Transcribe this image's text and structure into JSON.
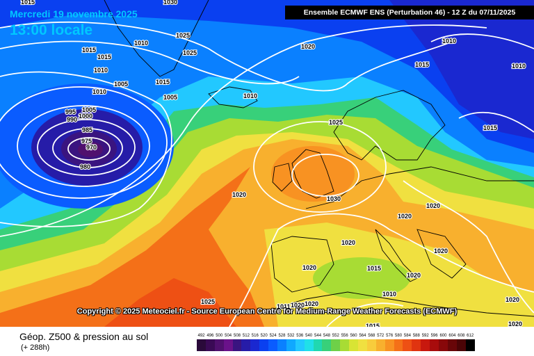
{
  "header": {
    "date": "Mercredi 19 novembre 2025",
    "local_time": "13:00 locale",
    "model_run": "Ensemble ECMWF ENS  (Perturbation 46)  -  12 Z du 07/11/2025"
  },
  "copyright": "Copyright © 2025 Meteociel.fr - Source European Centre for Medium-Range Weather Forecasts (ECMWF)",
  "footer": {
    "title": "Géop. Z500 & pression au sol",
    "lead_time": "(+ 288h)"
  },
  "legend": {
    "values": [
      "492",
      "496",
      "500",
      "504",
      "508",
      "512",
      "516",
      "520",
      "524",
      "528",
      "532",
      "536",
      "540",
      "544",
      "548",
      "552",
      "556",
      "560",
      "564",
      "568",
      "572",
      "576",
      "580",
      "584",
      "588",
      "592",
      "596",
      "600",
      "604",
      "608",
      "612"
    ],
    "colors": [
      "#2a0a3a",
      "#3a0a55",
      "#50106e",
      "#6a128a",
      "#3a1480",
      "#261ca8",
      "#1a28d0",
      "#0a40f0",
      "#0a5cff",
      "#0a80ff",
      "#10a8ff",
      "#22c8ff",
      "#20e0e8",
      "#20d8b0",
      "#38d07a",
      "#6ed048",
      "#a8dc34",
      "#d8e434",
      "#f0e040",
      "#f8cc3c",
      "#f8b02e",
      "#f89222",
      "#f47018",
      "#ee5014",
      "#e03410",
      "#c8180e",
      "#a80c0c",
      "#88080a",
      "#680608",
      "#4a0406",
      "#000000"
    ]
  },
  "isobar_labels": [
    "1015",
    "1030",
    "1025",
    "1015",
    "1010",
    "1015",
    "1010",
    "1010",
    "1005",
    "1015",
    "1005",
    "1005",
    "1010",
    "995",
    "1000",
    "990",
    "985",
    "975",
    "970",
    "980",
    "1025",
    "1020",
    "1010",
    "1015",
    "1010",
    "1015",
    "1025",
    "1030",
    "1020",
    "1020",
    "1020",
    "1020",
    "1020",
    "1015",
    "1010",
    "1020",
    "1020",
    "1025",
    "1011",
    "1020",
    "1020",
    "1015",
    "1020",
    "1020"
  ]
}
